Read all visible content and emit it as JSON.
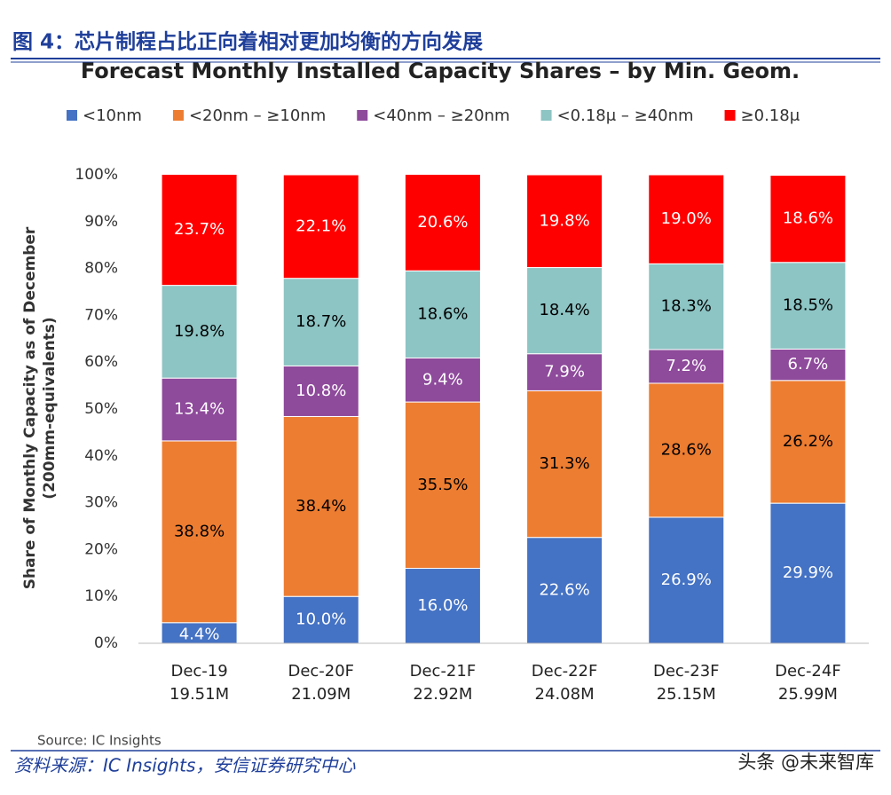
{
  "header": {
    "title": "图 4：芯片制程占比正向着相对更加均衡的方向发展"
  },
  "chart_data": {
    "type": "stacked_bar",
    "title": "Forecast Monthly Installed Capacity Shares – by Min. Geom.",
    "ylabel": [
      "Share of Monthly Capacity as of December",
      "(200mm-equivalents)"
    ],
    "categories": [
      "Dec-19",
      "Dec-20F",
      "Dec-21F",
      "Dec-22F",
      "Dec-23F",
      "Dec-24F"
    ],
    "category_totals": [
      "19.51M",
      "21.09M",
      "22.92M",
      "24.08M",
      "25.15M",
      "25.99M"
    ],
    "series": [
      {
        "name": "<10nm",
        "color": "#4472c4",
        "label_color": "#ffffff",
        "values": [
          4.4,
          10.0,
          16.0,
          22.6,
          26.9,
          29.9
        ],
        "value_labels": [
          "4.4%",
          "10.0%",
          "16.0%",
          "22.6%",
          "26.9%",
          "29.9%"
        ]
      },
      {
        "name": "<20nm – ≥10nm",
        "color": "#ed7d31",
        "label_color": "#000000",
        "values": [
          38.8,
          38.4,
          35.5,
          31.3,
          28.6,
          26.2
        ],
        "value_labels": [
          "38.8%",
          "38.4%",
          "35.5%",
          "31.3%",
          "28.6%",
          "26.2%"
        ]
      },
      {
        "name": "<40nm – ≥20nm",
        "color": "#8e4a9b",
        "label_color": "#ffffff",
        "values": [
          13.4,
          10.8,
          9.4,
          7.9,
          7.2,
          6.7
        ],
        "value_labels": [
          "13.4%",
          "10.8%",
          "9.4%",
          "7.9%",
          "7.2%",
          "6.7%"
        ]
      },
      {
        "name": "<0.18μ – ≥40nm",
        "color": "#8dc4c4",
        "label_color": "#000000",
        "values": [
          19.8,
          18.7,
          18.6,
          18.4,
          18.3,
          18.5
        ],
        "value_labels": [
          "19.8%",
          "18.7%",
          "18.6%",
          "18.4%",
          "18.3%",
          "18.5%"
        ]
      },
      {
        "name": "≥0.18μ",
        "color": "#ff0000",
        "label_color": "#ffffff",
        "values": [
          23.7,
          22.1,
          20.6,
          19.8,
          19.0,
          18.6
        ],
        "value_labels": [
          "23.7%",
          "22.1%",
          "20.6%",
          "19.8%",
          "19.0%",
          "18.6%"
        ]
      }
    ],
    "ylim": [
      0,
      100
    ],
    "yticks": [
      {
        "value": 0,
        "label": "0%"
      },
      {
        "value": 10,
        "label": "10%"
      },
      {
        "value": 20,
        "label": "20%"
      },
      {
        "value": 30,
        "label": "30%"
      },
      {
        "value": 40,
        "label": "40%"
      },
      {
        "value": 50,
        "label": "50%"
      },
      {
        "value": 60,
        "label": "60%"
      },
      {
        "value": 70,
        "label": "70%"
      },
      {
        "value": 80,
        "label": "80%"
      },
      {
        "value": 90,
        "label": "90%"
      },
      {
        "value": 100,
        "label": "100%"
      }
    ],
    "grid": false,
    "source": "Source: IC Insights"
  },
  "footer": {
    "source": "资料来源：IC Insights，安信证券研究中心",
    "watermark": "头条 @未来智库"
  }
}
